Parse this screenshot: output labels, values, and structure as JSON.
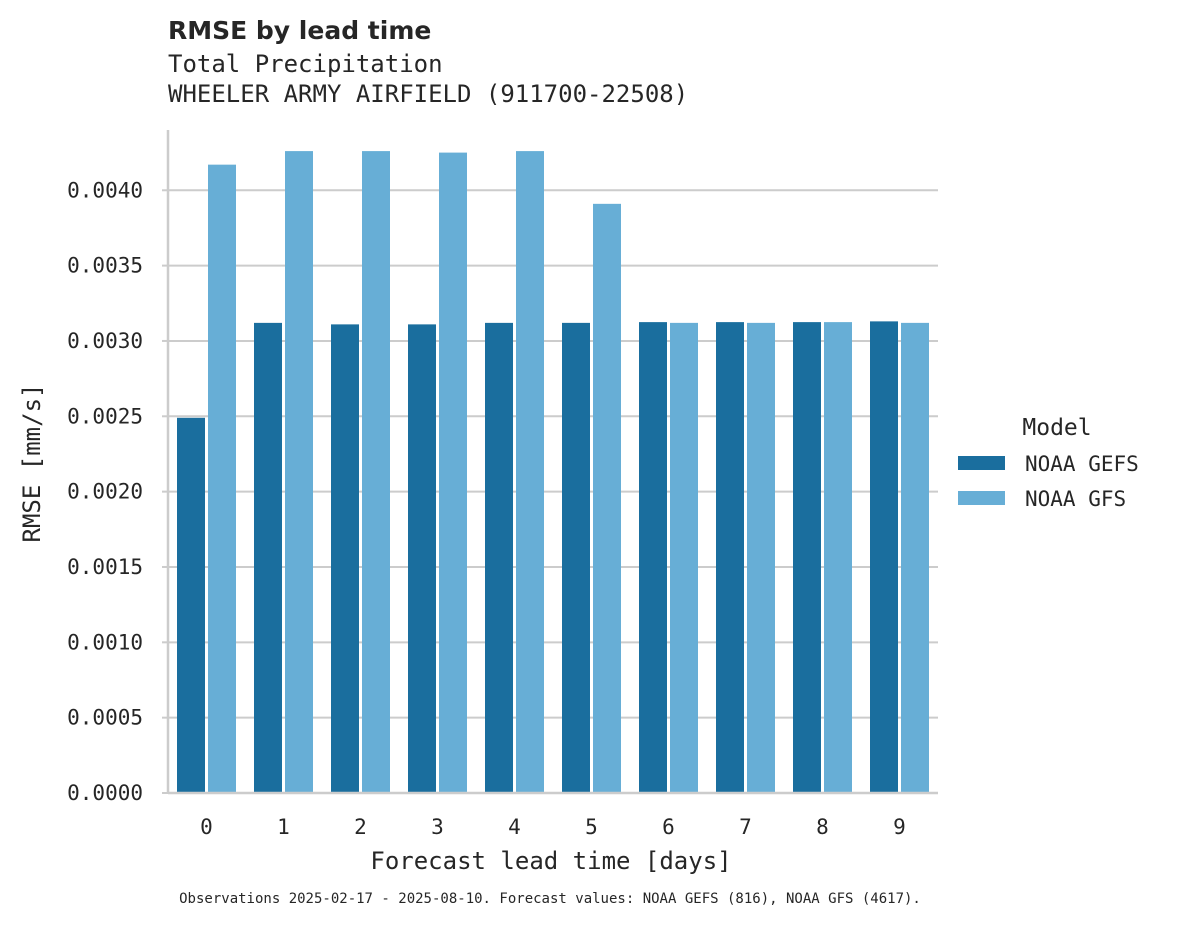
{
  "chart_data": {
    "type": "bar",
    "title": "RMSE by lead time",
    "subtitle_lines": [
      "Total Precipitation",
      "WHEELER ARMY AIRFIELD (911700-22508)"
    ],
    "xlabel": "Forecast lead time [days]",
    "ylabel": "RMSE [mm/s]",
    "categories": [
      "0",
      "1",
      "2",
      "3",
      "4",
      "5",
      "6",
      "7",
      "8",
      "9"
    ],
    "ylim": [
      0,
      0.0044
    ],
    "yticks": [
      "0.0000",
      "0.0005",
      "0.0010",
      "0.0015",
      "0.0020",
      "0.0025",
      "0.0030",
      "0.0035",
      "0.0040"
    ],
    "grid": true,
    "legend": {
      "title": "Model",
      "placement": "right"
    },
    "series": [
      {
        "name": "NOAA GEFS",
        "color": "#1a6e9e",
        "values": [
          0.00249,
          0.00312,
          0.00311,
          0.00311,
          0.00312,
          0.00312,
          0.003125,
          0.003125,
          0.003125,
          0.00313
        ]
      },
      {
        "name": "NOAA GFS",
        "color": "#67aed6",
        "values": [
          0.00417,
          0.00426,
          0.00426,
          0.00425,
          0.00426,
          0.00391,
          0.00312,
          0.00312,
          0.003125,
          0.00312
        ]
      }
    ],
    "footnote": "Observations 2025-02-17 - 2025-08-10. Forecast values: NOAA GEFS (816), NOAA GFS (4617)."
  }
}
